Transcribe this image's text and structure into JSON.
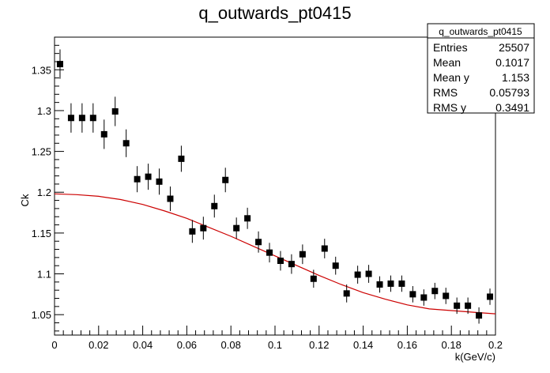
{
  "chart_data": {
    "type": "scatter",
    "title": "q_outwards_pt0415",
    "xlabel": "k(GeV/c)",
    "ylabel": "Ck",
    "xlim": [
      0,
      0.2
    ],
    "ylim": [
      1.025,
      1.39
    ],
    "x_ticks": [
      {
        "value": 0,
        "label": "0"
      },
      {
        "value": 0.02,
        "label": "0.02"
      },
      {
        "value": 0.04,
        "label": "0.04"
      },
      {
        "value": 0.06,
        "label": "0.06"
      },
      {
        "value": 0.08,
        "label": "0.08"
      },
      {
        "value": 0.1,
        "label": "0.1"
      },
      {
        "value": 0.12,
        "label": "0.12"
      },
      {
        "value": 0.14,
        "label": "0.14"
      },
      {
        "value": 0.16,
        "label": "0.16"
      },
      {
        "value": 0.18,
        "label": "0.18"
      },
      {
        "value": 0.2,
        "label": "0.2"
      }
    ],
    "y_ticks": [
      {
        "value": 1.05,
        "label": "1.05"
      },
      {
        "value": 1.1,
        "label": "1.1"
      },
      {
        "value": 1.15,
        "label": "1.15"
      },
      {
        "value": 1.2,
        "label": "1.2"
      },
      {
        "value": 1.25,
        "label": "1.25"
      },
      {
        "value": 1.3,
        "label": "1.3"
      },
      {
        "value": 1.35,
        "label": "1.35"
      }
    ],
    "points": [
      {
        "x": 0.0025,
        "y": 1.357,
        "err": 0.018
      },
      {
        "x": 0.0075,
        "y": 1.291,
        "err": 0.018
      },
      {
        "x": 0.0125,
        "y": 1.291,
        "err": 0.018
      },
      {
        "x": 0.0175,
        "y": 1.291,
        "err": 0.018
      },
      {
        "x": 0.0225,
        "y": 1.271,
        "err": 0.018
      },
      {
        "x": 0.0275,
        "y": 1.299,
        "err": 0.018
      },
      {
        "x": 0.0325,
        "y": 1.26,
        "err": 0.017
      },
      {
        "x": 0.0375,
        "y": 1.216,
        "err": 0.016
      },
      {
        "x": 0.0425,
        "y": 1.219,
        "err": 0.016
      },
      {
        "x": 0.0475,
        "y": 1.213,
        "err": 0.016
      },
      {
        "x": 0.0525,
        "y": 1.192,
        "err": 0.015
      },
      {
        "x": 0.0575,
        "y": 1.241,
        "err": 0.016
      },
      {
        "x": 0.0625,
        "y": 1.152,
        "err": 0.014
      },
      {
        "x": 0.0675,
        "y": 1.156,
        "err": 0.014
      },
      {
        "x": 0.0725,
        "y": 1.183,
        "err": 0.014
      },
      {
        "x": 0.0775,
        "y": 1.215,
        "err": 0.015
      },
      {
        "x": 0.0825,
        "y": 1.156,
        "err": 0.013
      },
      {
        "x": 0.0875,
        "y": 1.168,
        "err": 0.013
      },
      {
        "x": 0.0925,
        "y": 1.139,
        "err": 0.013
      },
      {
        "x": 0.0975,
        "y": 1.126,
        "err": 0.012
      },
      {
        "x": 0.1025,
        "y": 1.116,
        "err": 0.012
      },
      {
        "x": 0.1075,
        "y": 1.112,
        "err": 0.012
      },
      {
        "x": 0.1125,
        "y": 1.124,
        "err": 0.012
      },
      {
        "x": 0.1175,
        "y": 1.094,
        "err": 0.011
      },
      {
        "x": 0.1225,
        "y": 1.131,
        "err": 0.012
      },
      {
        "x": 0.1275,
        "y": 1.11,
        "err": 0.011
      },
      {
        "x": 0.1325,
        "y": 1.076,
        "err": 0.011
      },
      {
        "x": 0.1375,
        "y": 1.099,
        "err": 0.011
      },
      {
        "x": 0.1425,
        "y": 1.1,
        "err": 0.011
      },
      {
        "x": 0.1475,
        "y": 1.087,
        "err": 0.01
      },
      {
        "x": 0.1525,
        "y": 1.088,
        "err": 0.01
      },
      {
        "x": 0.1575,
        "y": 1.088,
        "err": 0.01
      },
      {
        "x": 0.1625,
        "y": 1.075,
        "err": 0.01
      },
      {
        "x": 0.1675,
        "y": 1.071,
        "err": 0.01
      },
      {
        "x": 0.1725,
        "y": 1.079,
        "err": 0.01
      },
      {
        "x": 0.1775,
        "y": 1.073,
        "err": 0.01
      },
      {
        "x": 0.1825,
        "y": 1.061,
        "err": 0.01
      },
      {
        "x": 0.1875,
        "y": 1.061,
        "err": 0.01
      },
      {
        "x": 0.1925,
        "y": 1.049,
        "err": 0.01
      },
      {
        "x": 0.1975,
        "y": 1.072,
        "err": 0.01
      }
    ],
    "fit": {
      "color": "#cc0000",
      "x": [
        0,
        0.01,
        0.02,
        0.03,
        0.04,
        0.05,
        0.06,
        0.07,
        0.08,
        0.09,
        0.1,
        0.11,
        0.12,
        0.13,
        0.14,
        0.15,
        0.16,
        0.17,
        0.18,
        0.19,
        0.2
      ],
      "y": [
        1.198,
        1.197,
        1.195,
        1.191,
        1.185,
        1.177,
        1.168,
        1.157,
        1.146,
        1.134,
        1.122,
        1.11,
        1.098,
        1.087,
        1.077,
        1.069,
        1.062,
        1.057,
        1.055,
        1.053,
        1.051
      ]
    },
    "grid": false,
    "legend_placement": "top-right"
  },
  "stats_box": {
    "title": "q_outwards_pt0415",
    "rows": [
      {
        "label": "Entries",
        "value": "25507"
      },
      {
        "label": "Mean",
        "value": "0.1017"
      },
      {
        "label": "Mean y",
        "value": "1.153"
      },
      {
        "label": "RMS",
        "value": "0.05793"
      },
      {
        "label": "RMS y",
        "value": "0.3491"
      }
    ]
  },
  "colors": {
    "marker": "#000000",
    "axis": "#000000",
    "fit": "#cc0000",
    "background": "#ffffff"
  }
}
